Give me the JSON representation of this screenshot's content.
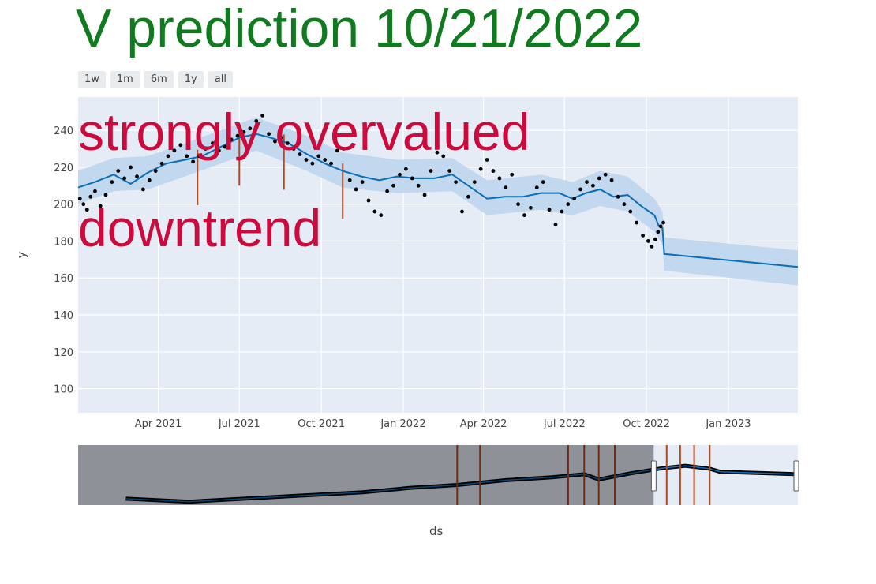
{
  "title": "V prediction 10/21/2022",
  "range_buttons": [
    "1w",
    "1m",
    "6m",
    "1y",
    "all"
  ],
  "annotations": [
    "strongly overvalued",
    "downtrend"
  ],
  "colors": {
    "title": "#0f7a1e",
    "annotation": "#cc0a3c",
    "plot_bg": "#e5ecf6",
    "forecast_line": "#0b6fb8",
    "uncertainty_band": "#bcd6ee",
    "points": "#000000",
    "changepoints": "#b5481f"
  },
  "chart_data": {
    "type": "line",
    "xlabel": "ds",
    "ylabel": "y",
    "ylim": [
      87,
      258
    ],
    "xlim": [
      "2021-01-01",
      "2023-03-20"
    ],
    "grid": true,
    "y_ticks": [
      100,
      120,
      140,
      160,
      180,
      200,
      220,
      240
    ],
    "x_ticks": [
      {
        "label": "Apr 2021",
        "date": "2021-04-01"
      },
      {
        "label": "Jul 2021",
        "date": "2021-07-01"
      },
      {
        "label": "Oct 2021",
        "date": "2021-10-01"
      },
      {
        "label": "Jan 2022",
        "date": "2022-01-01"
      },
      {
        "label": "Apr 2022",
        "date": "2022-04-01"
      },
      {
        "label": "Jul 2022",
        "date": "2022-07-01"
      },
      {
        "label": "Oct 2022",
        "date": "2022-10-01"
      },
      {
        "label": "Jan 2023",
        "date": "2023-01-01"
      }
    ],
    "forecast": [
      [
        "2021-01-01",
        209
      ],
      [
        "2021-01-20",
        212
      ],
      [
        "2021-02-10",
        216
      ],
      [
        "2021-03-01",
        211
      ],
      [
        "2021-03-20",
        217
      ],
      [
        "2021-04-10",
        222
      ],
      [
        "2021-05-01",
        224
      ],
      [
        "2021-05-20",
        226
      ],
      [
        "2021-06-10",
        231
      ],
      [
        "2021-07-01",
        236
      ],
      [
        "2021-07-20",
        238
      ],
      [
        "2021-08-05",
        236
      ],
      [
        "2021-08-25",
        233
      ],
      [
        "2021-09-15",
        227
      ],
      [
        "2021-10-05",
        222
      ],
      [
        "2021-10-25",
        218
      ],
      [
        "2021-11-15",
        215
      ],
      [
        "2021-12-05",
        213
      ],
      [
        "2021-12-25",
        215
      ],
      [
        "2022-01-15",
        214
      ],
      [
        "2022-02-05",
        214
      ],
      [
        "2022-02-25",
        216
      ],
      [
        "2022-03-15",
        210
      ],
      [
        "2022-04-05",
        203
      ],
      [
        "2022-04-25",
        204
      ],
      [
        "2022-05-15",
        204
      ],
      [
        "2022-06-05",
        206
      ],
      [
        "2022-06-25",
        206
      ],
      [
        "2022-07-10",
        203
      ],
      [
        "2022-07-25",
        206
      ],
      [
        "2022-08-10",
        208
      ],
      [
        "2022-08-25",
        204
      ],
      [
        "2022-09-10",
        205
      ],
      [
        "2022-09-25",
        199
      ],
      [
        "2022-10-10",
        194
      ],
      [
        "2022-10-15",
        188
      ],
      [
        "2022-10-19",
        187
      ],
      [
        "2022-10-21",
        173
      ],
      [
        "2023-03-20",
        166
      ]
    ],
    "uncertainty": {
      "upper": [
        [
          "2021-01-01",
          218
        ],
        [
          "2021-02-10",
          225
        ],
        [
          "2021-03-20",
          226
        ],
        [
          "2021-05-01",
          233
        ],
        [
          "2021-06-10",
          240
        ],
        [
          "2021-07-20",
          247
        ],
        [
          "2021-09-15",
          237
        ],
        [
          "2021-10-25",
          228
        ],
        [
          "2021-12-25",
          224
        ],
        [
          "2022-02-25",
          225
        ],
        [
          "2022-04-05",
          213
        ],
        [
          "2022-06-05",
          216
        ],
        [
          "2022-07-10",
          212
        ],
        [
          "2022-08-10",
          218
        ],
        [
          "2022-09-10",
          215
        ],
        [
          "2022-10-10",
          203
        ],
        [
          "2022-10-19",
          196
        ],
        [
          "2022-10-21",
          182
        ],
        [
          "2023-03-20",
          175
        ]
      ],
      "lower": [
        [
          "2021-01-01",
          200
        ],
        [
          "2021-02-10",
          207
        ],
        [
          "2021-03-20",
          208
        ],
        [
          "2021-05-01",
          215
        ],
        [
          "2021-06-10",
          222
        ],
        [
          "2021-07-20",
          229
        ],
        [
          "2021-09-15",
          218
        ],
        [
          "2021-10-25",
          209
        ],
        [
          "2021-12-25",
          206
        ],
        [
          "2022-02-25",
          207
        ],
        [
          "2022-04-05",
          194
        ],
        [
          "2022-06-05",
          197
        ],
        [
          "2022-07-10",
          194
        ],
        [
          "2022-08-10",
          199
        ],
        [
          "2022-09-10",
          196
        ],
        [
          "2022-10-10",
          185
        ],
        [
          "2022-10-19",
          178
        ],
        [
          "2022-10-21",
          164
        ],
        [
          "2023-03-20",
          156
        ]
      ]
    },
    "observed": [
      [
        "2021-01-03",
        203
      ],
      [
        "2021-01-07",
        200
      ],
      [
        "2021-01-11",
        197
      ],
      [
        "2021-01-15",
        204
      ],
      [
        "2021-01-20",
        207
      ],
      [
        "2021-01-26",
        199
      ],
      [
        "2021-02-01",
        205
      ],
      [
        "2021-02-08",
        212
      ],
      [
        "2021-02-15",
        218
      ],
      [
        "2021-02-22",
        214
      ],
      [
        "2021-03-01",
        220
      ],
      [
        "2021-03-08",
        215
      ],
      [
        "2021-03-15",
        208
      ],
      [
        "2021-03-22",
        213
      ],
      [
        "2021-03-29",
        218
      ],
      [
        "2021-04-05",
        222
      ],
      [
        "2021-04-12",
        226
      ],
      [
        "2021-04-19",
        229
      ],
      [
        "2021-04-26",
        232
      ],
      [
        "2021-05-03",
        226
      ],
      [
        "2021-05-10",
        223
      ],
      [
        "2021-05-17",
        226
      ],
      [
        "2021-05-24",
        230
      ],
      [
        "2021-06-01",
        233
      ],
      [
        "2021-06-08",
        229
      ],
      [
        "2021-06-15",
        231
      ],
      [
        "2021-06-22",
        235
      ],
      [
        "2021-06-29",
        237
      ],
      [
        "2021-07-06",
        239
      ],
      [
        "2021-07-13",
        241
      ],
      [
        "2021-07-20",
        245
      ],
      [
        "2021-07-27",
        248
      ],
      [
        "2021-08-03",
        238
      ],
      [
        "2021-08-10",
        234
      ],
      [
        "2021-08-17",
        236
      ],
      [
        "2021-08-24",
        233
      ],
      [
        "2021-08-31",
        230
      ],
      [
        "2021-09-07",
        227
      ],
      [
        "2021-09-14",
        224
      ],
      [
        "2021-09-21",
        222
      ],
      [
        "2021-09-28",
        226
      ],
      [
        "2021-10-05",
        224
      ],
      [
        "2021-10-12",
        222
      ],
      [
        "2021-10-19",
        229
      ],
      [
        "2021-10-26",
        230
      ],
      [
        "2021-11-02",
        213
      ],
      [
        "2021-11-09",
        208
      ],
      [
        "2021-11-16",
        212
      ],
      [
        "2021-11-23",
        202
      ],
      [
        "2021-11-30",
        196
      ],
      [
        "2021-12-07",
        194
      ],
      [
        "2021-12-14",
        207
      ],
      [
        "2021-12-21",
        210
      ],
      [
        "2021-12-28",
        216
      ],
      [
        "2022-01-04",
        219
      ],
      [
        "2022-01-11",
        214
      ],
      [
        "2022-01-18",
        210
      ],
      [
        "2022-01-25",
        205
      ],
      [
        "2022-02-01",
        218
      ],
      [
        "2022-02-08",
        228
      ],
      [
        "2022-02-15",
        226
      ],
      [
        "2022-02-22",
        218
      ],
      [
        "2022-03-01",
        212
      ],
      [
        "2022-03-08",
        196
      ],
      [
        "2022-03-15",
        204
      ],
      [
        "2022-03-22",
        212
      ],
      [
        "2022-03-29",
        219
      ],
      [
        "2022-04-05",
        224
      ],
      [
        "2022-04-12",
        218
      ],
      [
        "2022-04-19",
        214
      ],
      [
        "2022-04-26",
        209
      ],
      [
        "2022-05-03",
        216
      ],
      [
        "2022-05-10",
        200
      ],
      [
        "2022-05-17",
        194
      ],
      [
        "2022-05-24",
        198
      ],
      [
        "2022-05-31",
        209
      ],
      [
        "2022-06-07",
        212
      ],
      [
        "2022-06-14",
        197
      ],
      [
        "2022-06-21",
        189
      ],
      [
        "2022-06-28",
        196
      ],
      [
        "2022-07-05",
        200
      ],
      [
        "2022-07-12",
        203
      ],
      [
        "2022-07-19",
        208
      ],
      [
        "2022-07-26",
        212
      ],
      [
        "2022-08-02",
        210
      ],
      [
        "2022-08-09",
        214
      ],
      [
        "2022-08-16",
        216
      ],
      [
        "2022-08-23",
        213
      ],
      [
        "2022-08-30",
        204
      ],
      [
        "2022-09-06",
        200
      ],
      [
        "2022-09-13",
        196
      ],
      [
        "2022-09-20",
        190
      ],
      [
        "2022-09-27",
        183
      ],
      [
        "2022-10-03",
        180
      ],
      [
        "2022-10-07",
        177
      ],
      [
        "2022-10-11",
        181
      ],
      [
        "2022-10-14",
        185
      ],
      [
        "2022-10-17",
        188
      ],
      [
        "2022-10-20",
        190
      ]
    ],
    "changepoints": [
      "2021-05-15",
      "2021-07-01",
      "2021-08-20",
      "2021-10-25"
    ],
    "rangeslider": {
      "selected": [
        "2022-06-15",
        "2023-03-20"
      ],
      "changepoints": [
        "2021-06-01",
        "2021-07-15",
        "2022-01-01",
        "2022-02-01",
        "2022-03-01",
        "2022-04-01",
        "2022-07-10",
        "2022-08-05",
        "2022-09-01",
        "2022-10-01"
      ]
    }
  }
}
